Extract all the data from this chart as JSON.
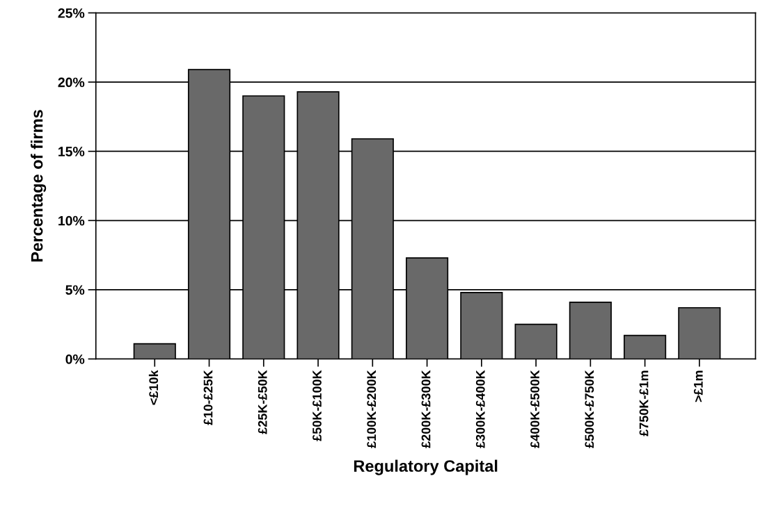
{
  "chart_data": {
    "type": "bar",
    "xlabel": "Regulatory Capital",
    "ylabel": "Percentage of firms",
    "categories": [
      "<£10k",
      "£10-£25K",
      "£25K-£50K",
      "£50K-£100K",
      "£100K-£200K",
      "£200K-£300K",
      "£300K-£400K",
      "£400K-£500K",
      "£500K-£750K",
      "£750K-£1m",
      ">£1m"
    ],
    "values": [
      1.1,
      20.9,
      19.0,
      19.3,
      15.9,
      7.3,
      4.8,
      2.5,
      4.1,
      1.7,
      3.7
    ],
    "color": "#696969",
    "ylim": [
      0,
      25
    ],
    "yticks": [
      {
        "value": 0,
        "label": "0%"
      },
      {
        "value": 5,
        "label": "5%"
      },
      {
        "value": 10,
        "label": "10%"
      },
      {
        "value": 15,
        "label": "15%"
      },
      {
        "value": 20,
        "label": "20%"
      },
      {
        "value": 25,
        "label": "25%"
      }
    ],
    "grid": "y"
  }
}
